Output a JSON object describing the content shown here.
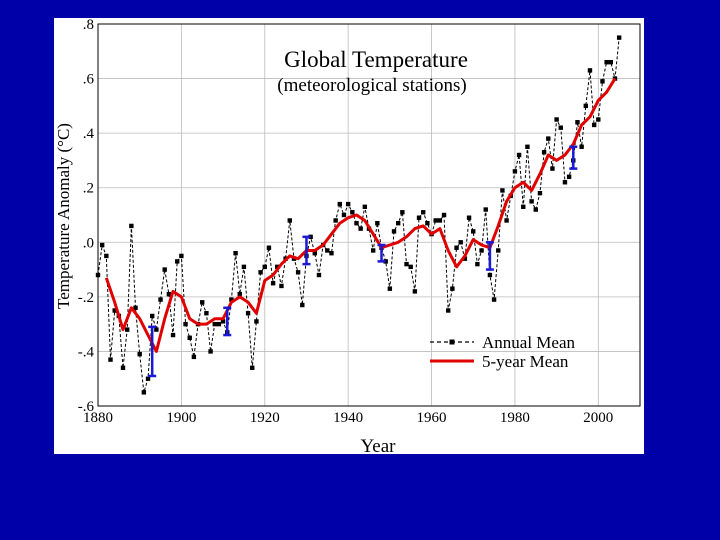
{
  "colors": {
    "background": "#0000a8",
    "panel": "#ffffff",
    "annual": "#000000",
    "five_year": "#e00000",
    "error_bars": "#1a1ad6",
    "grid": "#bbbbbb"
  },
  "chart_data": {
    "type": "line",
    "title": "Global Temperature",
    "subtitle": "(meteorological stations)",
    "xlabel": "Year",
    "ylabel": "Temperature Anomaly (°C)",
    "xlim": [
      1880,
      2010
    ],
    "ylim": [
      -0.6,
      0.8
    ],
    "grid": true,
    "legend_position": "bottom-right",
    "x_ticks": [
      1880,
      1900,
      1920,
      1940,
      1960,
      1980,
      2000
    ],
    "x_tick_labels": [
      "1880",
      "1900",
      "1920",
      "1940",
      "1960",
      "1980",
      "2000"
    ],
    "y_ticks": [
      -0.6,
      -0.4,
      -0.2,
      0.0,
      0.2,
      0.4,
      0.6,
      0.8
    ],
    "y_tick_labels": [
      "-.6",
      "-.4",
      "-.2",
      ".0",
      ".2",
      ".4",
      ".6",
      ".8"
    ],
    "series": [
      {
        "name": "Annual Mean",
        "style": "dashed-with-square-markers",
        "x": [
          1880,
          1881,
          1882,
          1883,
          1884,
          1885,
          1886,
          1887,
          1888,
          1889,
          1890,
          1891,
          1892,
          1893,
          1894,
          1895,
          1896,
          1897,
          1898,
          1899,
          1900,
          1901,
          1902,
          1903,
          1904,
          1905,
          1906,
          1907,
          1908,
          1909,
          1910,
          1911,
          1912,
          1913,
          1914,
          1915,
          1916,
          1917,
          1918,
          1919,
          1920,
          1921,
          1922,
          1923,
          1924,
          1925,
          1926,
          1927,
          1928,
          1929,
          1930,
          1931,
          1932,
          1933,
          1934,
          1935,
          1936,
          1937,
          1938,
          1939,
          1940,
          1941,
          1942,
          1943,
          1944,
          1945,
          1946,
          1947,
          1948,
          1949,
          1950,
          1951,
          1952,
          1953,
          1954,
          1955,
          1956,
          1957,
          1958,
          1959,
          1960,
          1961,
          1962,
          1963,
          1964,
          1965,
          1966,
          1967,
          1968,
          1969,
          1970,
          1971,
          1972,
          1973,
          1974,
          1975,
          1976,
          1977,
          1978,
          1979,
          1980,
          1981,
          1982,
          1983,
          1984,
          1985,
          1986,
          1987,
          1988,
          1989,
          1990,
          1991,
          1992,
          1993,
          1994,
          1995,
          1996,
          1997,
          1998,
          1999,
          2000,
          2001,
          2002,
          2003,
          2004,
          2005
        ],
        "values": [
          -0.12,
          -0.01,
          -0.05,
          -0.43,
          -0.25,
          -0.27,
          -0.46,
          -0.32,
          0.06,
          -0.24,
          -0.41,
          -0.55,
          -0.5,
          -0.27,
          -0.32,
          -0.21,
          -0.1,
          -0.19,
          -0.34,
          -0.07,
          -0.05,
          -0.3,
          -0.35,
          -0.42,
          -0.3,
          -0.22,
          -0.26,
          -0.4,
          -0.3,
          -0.3,
          -0.29,
          -0.33,
          -0.21,
          -0.04,
          -0.19,
          -0.09,
          -0.26,
          -0.46,
          -0.29,
          -0.11,
          -0.09,
          -0.02,
          -0.15,
          -0.09,
          -0.16,
          -0.06,
          0.08,
          -0.06,
          -0.11,
          -0.23,
          -0.05,
          0.02,
          -0.04,
          -0.12,
          -0.01,
          -0.03,
          -0.04,
          0.08,
          0.14,
          0.1,
          0.14,
          0.11,
          0.07,
          0.05,
          0.13,
          0.05,
          -0.03,
          0.07,
          -0.02,
          -0.07,
          -0.17,
          0.04,
          0.07,
          0.11,
          -0.08,
          -0.09,
          -0.18,
          0.09,
          0.11,
          0.07,
          0.03,
          0.08,
          0.08,
          0.1,
          -0.25,
          -0.17,
          -0.02,
          0.0,
          -0.06,
          0.09,
          0.04,
          -0.08,
          -0.03,
          0.12,
          -0.12,
          -0.21,
          -0.03,
          0.19,
          0.08,
          0.17,
          0.26,
          0.32,
          0.13,
          0.35,
          0.15,
          0.12,
          0.18,
          0.33,
          0.38,
          0.27,
          0.45,
          0.42,
          0.22,
          0.24,
          0.3,
          0.44,
          0.35,
          0.5,
          0.63,
          0.43,
          0.45,
          0.59,
          0.66,
          0.66,
          0.6,
          0.75
        ]
      },
      {
        "name": "5-year Mean",
        "style": "solid-red",
        "x": [
          1882,
          1884,
          1886,
          1888,
          1890,
          1892,
          1894,
          1896,
          1898,
          1900,
          1902,
          1904,
          1906,
          1908,
          1910,
          1912,
          1914,
          1916,
          1918,
          1920,
          1922,
          1924,
          1926,
          1928,
          1930,
          1932,
          1934,
          1936,
          1938,
          1940,
          1942,
          1944,
          1946,
          1948,
          1950,
          1952,
          1954,
          1956,
          1958,
          1960,
          1962,
          1964,
          1966,
          1968,
          1970,
          1972,
          1974,
          1976,
          1978,
          1980,
          1982,
          1984,
          1986,
          1988,
          1990,
          1992,
          1994,
          1996,
          1998,
          2000,
          2002,
          2004
        ],
        "values": [
          -0.13,
          -0.22,
          -0.32,
          -0.24,
          -0.28,
          -0.34,
          -0.4,
          -0.28,
          -0.18,
          -0.2,
          -0.28,
          -0.3,
          -0.3,
          -0.28,
          -0.28,
          -0.22,
          -0.2,
          -0.22,
          -0.26,
          -0.14,
          -0.12,
          -0.08,
          -0.05,
          -0.06,
          -0.03,
          -0.03,
          -0.01,
          0.03,
          0.07,
          0.09,
          0.1,
          0.08,
          0.03,
          -0.02,
          -0.01,
          0.0,
          0.02,
          0.05,
          0.06,
          0.03,
          0.05,
          -0.03,
          -0.09,
          -0.05,
          0.01,
          -0.01,
          -0.02,
          0.06,
          0.15,
          0.2,
          0.22,
          0.19,
          0.25,
          0.32,
          0.3,
          0.32,
          0.36,
          0.43,
          0.46,
          0.52,
          0.55,
          0.6
        ]
      }
    ],
    "error_bars": [
      {
        "x": 1893,
        "y": -0.4,
        "low": -0.49,
        "high": -0.31
      },
      {
        "x": 1911,
        "y": -0.29,
        "low": -0.34,
        "high": -0.24
      },
      {
        "x": 1930,
        "y": -0.03,
        "low": -0.08,
        "high": 0.02
      },
      {
        "x": 1948,
        "y": -0.04,
        "low": -0.07,
        "high": -0.01
      },
      {
        "x": 1974,
        "y": -0.05,
        "low": -0.1,
        "high": 0.0
      },
      {
        "x": 1994,
        "y": 0.31,
        "low": 0.27,
        "high": 0.35
      }
    ]
  }
}
